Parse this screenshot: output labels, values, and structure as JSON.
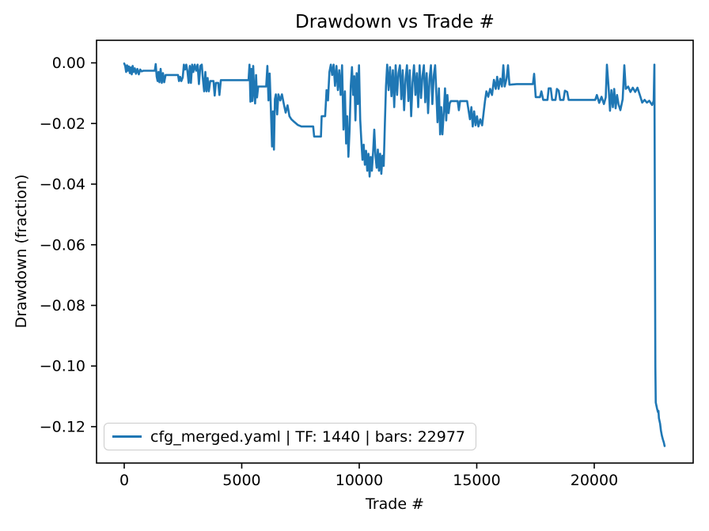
{
  "chart_data": {
    "type": "line",
    "title": "Drawdown vs Trade #",
    "xlabel": "Trade #",
    "ylabel": "Drawdown (fraction)",
    "grid": false,
    "legend_position": "lower left",
    "line_color": "#1f77b4",
    "xlim": [
      -1178,
      24209
    ],
    "ylim": [
      -0.132,
      0.00744
    ],
    "xticks": {
      "values": [
        0,
        5000,
        10000,
        15000,
        20000
      ],
      "labels": [
        "0",
        "5000",
        "10000",
        "15000",
        "20000"
      ]
    },
    "yticks": {
      "values": [
        0,
        -0.02,
        -0.04,
        -0.06,
        -0.08,
        -0.1,
        -0.12
      ],
      "labels": [
        "0.00",
        "−0.02",
        "−0.04",
        "−0.06",
        "−0.08",
        "−0.10",
        "−0.12"
      ]
    },
    "series": [
      {
        "name": "cfg_merged.yaml | TF: 1440 | bars: 22977",
        "color": "#1f77b4",
        "x": [
          0,
          40,
          80,
          120,
          160,
          200,
          240,
          280,
          320,
          360,
          400,
          450,
          500,
          560,
          620,
          680,
          740,
          820,
          1300,
          1340,
          1380,
          1420,
          1460,
          1500,
          1550,
          1600,
          1650,
          1700,
          1760,
          2290,
          2330,
          2380,
          2430,
          2490,
          2540,
          2590,
          2640,
          2690,
          2740,
          2790,
          2840,
          2890,
          2940,
          3000,
          3060,
          3120,
          3180,
          3240,
          3300,
          3350,
          3400,
          3450,
          3500,
          3550,
          3600,
          3660,
          3800,
          3850,
          3900,
          4000,
          4050,
          4110,
          5290,
          5330,
          5370,
          5410,
          5450,
          5490,
          5530,
          5570,
          5610,
          5650,
          5700,
          6040,
          6090,
          6140,
          6190,
          6240,
          6290,
          6330,
          6370,
          6410,
          6450,
          6510,
          6560,
          6640,
          6710,
          6790,
          6870,
          6950,
          7030,
          7110,
          7240,
          7390,
          7540,
          8040,
          8080,
          8370,
          8400,
          8550,
          8610,
          8670,
          8730,
          8790,
          8850,
          8910,
          8970,
          9030,
          9090,
          9150,
          9210,
          9270,
          9330,
          9390,
          9440,
          9490,
          9540,
          9590,
          9640,
          9690,
          9740,
          9790,
          9840,
          9890,
          9940,
          9990,
          10040,
          10090,
          10140,
          10190,
          10240,
          10290,
          10340,
          10390,
          10440,
          10490,
          10540,
          10590,
          10640,
          10690,
          10740,
          10790,
          10840,
          10890,
          10940,
          10990,
          11040,
          11090,
          11140,
          11190,
          11250,
          11310,
          11370,
          11430,
          11490,
          11550,
          11610,
          11670,
          11730,
          11790,
          11850,
          11910,
          11970,
          12030,
          12090,
          12150,
          12210,
          12270,
          12330,
          12390,
          12450,
          12510,
          12570,
          12630,
          12690,
          12750,
          12810,
          12870,
          12930,
          12990,
          13050,
          13110,
          13170,
          13230,
          13290,
          13330,
          13390,
          13440,
          13490,
          13540,
          13600,
          13650,
          13700,
          13750,
          13800,
          13850,
          13900,
          14190,
          14240,
          14290,
          14590,
          14650,
          14710,
          14770,
          14830,
          14890,
          14950,
          15010,
          15070,
          15150,
          15230,
          15290,
          15350,
          15410,
          15490,
          15570,
          15650,
          15730,
          15810,
          15870,
          15930,
          16000,
          16070,
          16130,
          16190,
          16270,
          16330,
          16390,
          16700,
          17390,
          17440,
          17510,
          17690,
          17750,
          17830,
          18010,
          18060,
          18150,
          18210,
          18350,
          18410,
          18490,
          18550,
          18690,
          18750,
          18850,
          18910,
          19090,
          20040,
          20110,
          20210,
          20310,
          20410,
          20490,
          20540,
          20610,
          20670,
          20730,
          20790,
          20850,
          20910,
          20970,
          21030,
          21110,
          21210,
          21280,
          21340,
          21440,
          21540,
          21640,
          21740,
          21840,
          21940,
          22040,
          22140,
          22240,
          22340,
          22460,
          22530,
          22560,
          22580,
          22600,
          22615,
          22670,
          22710,
          22730,
          22750,
          22800,
          22840,
          22880,
          22920,
          22960,
          22995
        ],
        "y": [
          -0.0002,
          -0.001,
          -0.003,
          -0.0008,
          -0.0026,
          -0.0012,
          -0.0034,
          -0.0015,
          -0.0038,
          -0.001,
          -0.003,
          -0.0018,
          -0.0036,
          -0.002,
          -0.0038,
          -0.0022,
          -0.0028,
          -0.0026,
          -0.0026,
          -0.0004,
          -0.0045,
          -0.006,
          -0.003,
          -0.0064,
          -0.002,
          -0.0066,
          -0.0034,
          -0.0064,
          -0.004,
          -0.004,
          -0.006,
          -0.0046,
          -0.006,
          -0.0048,
          -0.0006,
          -0.0022,
          -0.0006,
          -0.0028,
          -0.0066,
          -0.001,
          -0.0066,
          -0.0006,
          -0.003,
          -0.0006,
          -0.0026,
          -0.0006,
          -0.007,
          -0.001,
          -0.0006,
          -0.0055,
          -0.0094,
          -0.003,
          -0.0094,
          -0.005,
          -0.0094,
          -0.006,
          -0.006,
          -0.0108,
          -0.0066,
          -0.0066,
          -0.0106,
          -0.0057,
          -0.0057,
          -0.0006,
          -0.0128,
          -0.002,
          -0.0126,
          -0.001,
          -0.0094,
          -0.0134,
          -0.004,
          -0.0114,
          -0.0078,
          -0.0078,
          -0.001,
          -0.0124,
          -0.0035,
          -0.015,
          -0.0276,
          -0.016,
          -0.0286,
          -0.012,
          -0.0104,
          -0.017,
          -0.0104,
          -0.0124,
          -0.0104,
          -0.0136,
          -0.0164,
          -0.014,
          -0.0176,
          -0.0186,
          -0.0195,
          -0.0205,
          -0.021,
          -0.021,
          -0.0243,
          -0.0243,
          -0.0176,
          -0.0176,
          -0.009,
          -0.0124,
          -0.003,
          -0.0006,
          -0.004,
          -0.0006,
          -0.0076,
          -0.001,
          -0.009,
          -0.0024,
          -0.0106,
          -0.0008,
          -0.022,
          -0.0094,
          -0.0266,
          -0.0176,
          -0.031,
          -0.022,
          -0.0076,
          -0.0014,
          -0.0106,
          -0.0044,
          -0.019,
          -0.0034,
          -0.0136,
          -0.0008,
          -0.0186,
          -0.026,
          -0.032,
          -0.027,
          -0.0336,
          -0.029,
          -0.0356,
          -0.03,
          -0.0375,
          -0.031,
          -0.0356,
          -0.0295,
          -0.022,
          -0.0306,
          -0.0346,
          -0.0286,
          -0.0356,
          -0.03,
          -0.0366,
          -0.0306,
          -0.034,
          -0.02,
          -0.0076,
          -0.0006,
          -0.009,
          -0.0014,
          -0.011,
          -0.0024,
          -0.0146,
          -0.0008,
          -0.0106,
          -0.0034,
          -0.0008,
          -0.012,
          -0.0024,
          -0.0156,
          -0.0054,
          -0.0008,
          -0.0126,
          -0.0024,
          -0.0176,
          -0.0064,
          -0.0008,
          -0.0106,
          -0.0034,
          -0.0146,
          -0.0008,
          -0.0116,
          -0.0044,
          -0.0008,
          -0.013,
          -0.0034,
          -0.0166,
          -0.0054,
          -0.0008,
          -0.0136,
          -0.0044,
          -0.0008,
          -0.0116,
          -0.0196,
          -0.0084,
          -0.0236,
          -0.0146,
          -0.0236,
          -0.016,
          -0.0084,
          -0.019,
          -0.0106,
          -0.0166,
          -0.0134,
          -0.0126,
          -0.0126,
          -0.0156,
          -0.0126,
          -0.0126,
          -0.0156,
          -0.0186,
          -0.0146,
          -0.021,
          -0.016,
          -0.0206,
          -0.0176,
          -0.021,
          -0.0186,
          -0.0206,
          -0.0166,
          -0.0126,
          -0.0094,
          -0.0112,
          -0.0086,
          -0.0106,
          -0.0056,
          -0.0086,
          -0.0046,
          -0.0086,
          -0.0052,
          -0.0078,
          -0.0008,
          -0.0078,
          -0.0052,
          -0.0008,
          -0.0072,
          -0.007,
          -0.007,
          -0.0036,
          -0.0113,
          -0.0113,
          -0.0094,
          -0.0122,
          -0.0122,
          -0.0084,
          -0.0084,
          -0.0122,
          -0.0122,
          -0.0086,
          -0.0092,
          -0.0122,
          -0.0122,
          -0.0092,
          -0.0096,
          -0.0122,
          -0.0122,
          -0.0122,
          -0.0106,
          -0.0132,
          -0.0112,
          -0.0136,
          -0.0114,
          -0.0006,
          -0.008,
          -0.0158,
          -0.009,
          -0.0146,
          -0.0086,
          -0.015,
          -0.0106,
          -0.0136,
          -0.0156,
          -0.012,
          -0.0008,
          -0.0086,
          -0.0078,
          -0.0096,
          -0.0082,
          -0.0096,
          -0.0082,
          -0.0106,
          -0.0131,
          -0.0122,
          -0.0131,
          -0.0125,
          -0.0139,
          -0.0125,
          -0.0006,
          -0.05,
          -0.1,
          -0.112,
          -0.114,
          -0.1152,
          -0.1148,
          -0.1172,
          -0.119,
          -0.1214,
          -0.123,
          -0.1242,
          -0.1252,
          -0.1264
        ]
      }
    ]
  },
  "legend": {
    "label": "cfg_merged.yaml | TF: 1440 | bars: 22977"
  }
}
